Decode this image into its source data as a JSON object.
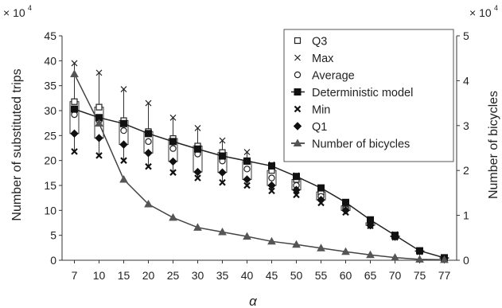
{
  "chart_data": {
    "type": "line",
    "xlabel": "α",
    "ylabel_left": "Number of substituted trips",
    "ylabel_right": "Number of bicycles",
    "scale_left": "× 10",
    "scale_right": "× 10",
    "scale_exponent": "4",
    "categories": [
      "7",
      "10",
      "15",
      "20",
      "25",
      "30",
      "35",
      "40",
      "45",
      "50",
      "55",
      "60",
      "65",
      "70",
      "75",
      "77"
    ],
    "ylim_left": [
      0,
      45
    ],
    "yticks_left": [
      "0",
      "5",
      "10",
      "15",
      "20",
      "25",
      "30",
      "35",
      "40",
      "45"
    ],
    "ylim_right": [
      0,
      5
    ],
    "yticks_right": [
      "0",
      "1",
      "2",
      "3",
      "4",
      "5"
    ],
    "legend_position": "top-right",
    "legend": [
      "Q3",
      "Max",
      "Average",
      "Deterministic model",
      "Min",
      "Q1",
      "Number of bicycles"
    ],
    "series": [
      {
        "name": "Q3",
        "axis": "left",
        "marker": "square",
        "values": [
          31.8,
          30.7,
          28.0,
          25.8,
          24.4,
          22.9,
          21.6,
          19.8,
          18.0,
          16.2,
          13.7,
          10.9,
          7.5,
          4.9,
          1.9,
          0.5
        ]
      },
      {
        "name": "Max",
        "axis": "left",
        "marker": "x",
        "values": [
          39.5,
          37.6,
          34.3,
          31.5,
          28.6,
          26.5,
          24.0,
          21.7,
          19.2,
          17.0,
          14.5,
          11.7,
          8.1,
          5.2,
          2.0,
          0.6
        ]
      },
      {
        "name": "Average",
        "axis": "left",
        "marker": "circle",
        "values": [
          29.2,
          28.0,
          26.0,
          23.8,
          22.4,
          21.3,
          19.9,
          18.3,
          16.5,
          15.0,
          12.8,
          10.3,
          7.1,
          4.7,
          1.8,
          0.4
        ]
      },
      {
        "name": "Deterministic model",
        "axis": "left",
        "marker": "filled-square",
        "values": [
          30.3,
          28.6,
          27.4,
          25.4,
          23.8,
          22.3,
          20.9,
          19.9,
          18.9,
          16.8,
          14.5,
          11.6,
          8.1,
          5.0,
          1.9,
          0.5
        ]
      },
      {
        "name": "Min",
        "axis": "left",
        "marker": "x-bold",
        "values": [
          21.8,
          21.0,
          20.0,
          18.8,
          17.6,
          16.5,
          15.6,
          15.0,
          13.9,
          13.1,
          11.5,
          9.6,
          6.9,
          4.6,
          1.7,
          0.4
        ]
      },
      {
        "name": "Q1",
        "axis": "left",
        "marker": "diamond",
        "values": [
          25.4,
          24.5,
          23.2,
          21.5,
          19.8,
          17.7,
          17.6,
          16.2,
          15.0,
          14.1,
          12.1,
          10.0,
          7.0,
          4.7,
          1.8,
          0.4
        ]
      },
      {
        "name": "Number of bicycles",
        "axis": "right",
        "marker": "triangle",
        "values": [
          4.15,
          3.05,
          1.8,
          1.25,
          0.95,
          0.73,
          0.63,
          0.53,
          0.42,
          0.35,
          0.27,
          0.19,
          0.12,
          0.06,
          0.02,
          0.01
        ]
      }
    ]
  }
}
